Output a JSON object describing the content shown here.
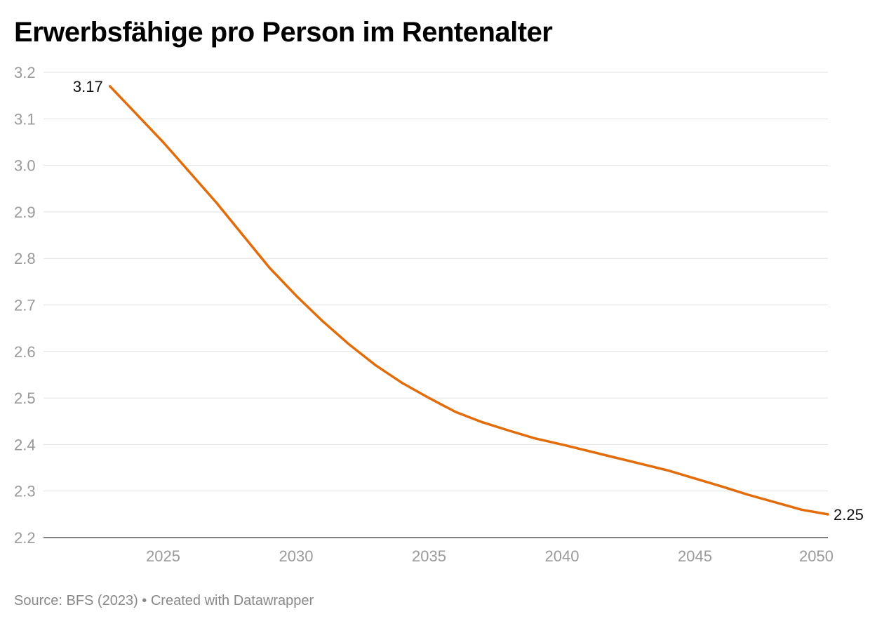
{
  "chart_data": {
    "type": "line",
    "title": "Erwerbsfähige pro Person im Rentenalter",
    "x": [
      2023,
      2024,
      2025,
      2026,
      2027,
      2028,
      2029,
      2030,
      2031,
      2032,
      2033,
      2034,
      2035,
      2036,
      2037,
      2038,
      2039,
      2040,
      2041,
      2042,
      2043,
      2044,
      2045,
      2046,
      2047,
      2048,
      2049,
      2050
    ],
    "series": [
      {
        "values": [
          3.17,
          3.11,
          3.05,
          2.985,
          2.92,
          2.85,
          2.78,
          2.72,
          2.665,
          2.615,
          2.57,
          2.532,
          2.5,
          2.47,
          2.448,
          2.43,
          2.413,
          2.4,
          2.386,
          2.372,
          2.358,
          2.344,
          2.327,
          2.31,
          2.292,
          2.276,
          2.26,
          2.25
        ],
        "color": "#e36c0a"
      }
    ],
    "xticks": [
      "2025",
      "2030",
      "2035",
      "2040",
      "2045",
      "2050"
    ],
    "yticks": [
      "2.2",
      "2.3",
      "2.4",
      "2.5",
      "2.6",
      "2.7",
      "2.8",
      "2.9",
      "3.0",
      "3.1",
      "3.2"
    ],
    "ylim": [
      2.2,
      3.2
    ],
    "xlim": [
      2020.5,
      2050
    ],
    "grid": true,
    "start_label": "3.17",
    "end_label": "2.25",
    "xlabel": "",
    "ylabel": ""
  },
  "footer": {
    "source_text": "Source: BFS (2023) • Created with Datawrapper"
  }
}
